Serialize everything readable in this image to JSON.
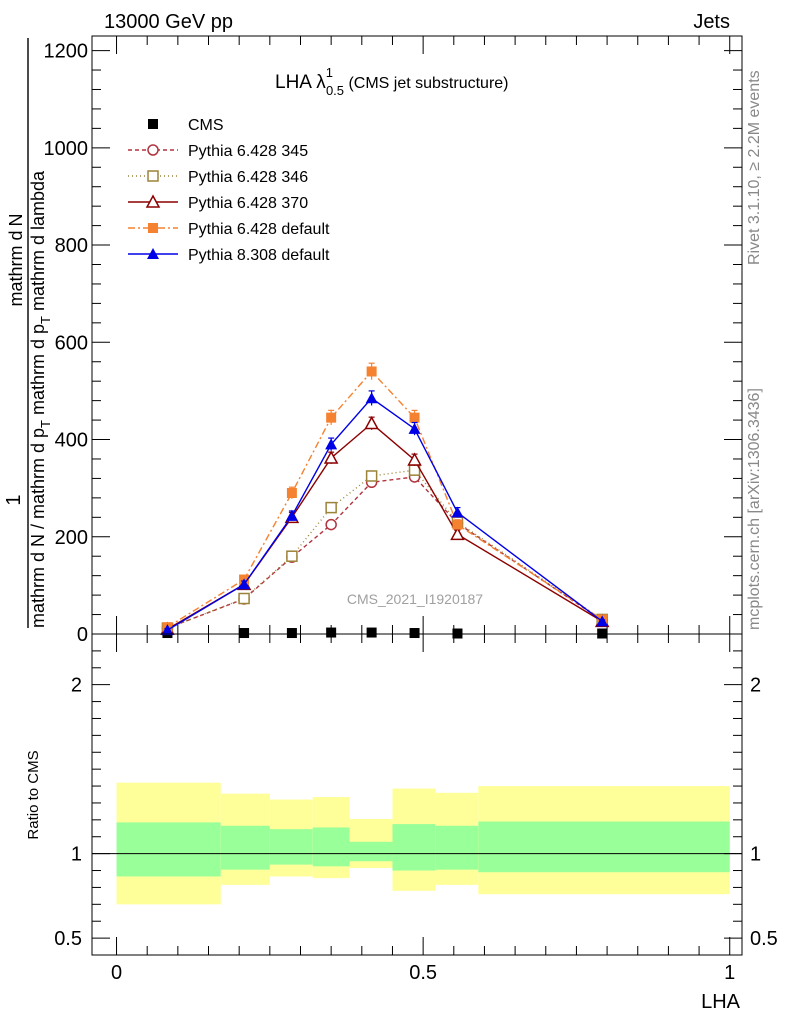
{
  "header": {
    "left": "13000 GeV pp",
    "right": "Jets"
  },
  "side_text": {
    "top": "Rivet 3.1.10, ≥ 2.2M events",
    "bottom": "mcplots.cern.ch [arXiv:1306.3436]"
  },
  "watermark": "CMS_2021_I1920187",
  "chart_data": [
    {
      "type": "line",
      "title": {
        "main": "LHA λ",
        "sup": "1",
        "sub": "0.5",
        "suffix": " (CMS jet substructure)"
      },
      "ylabel": {
        "num": "1",
        "den": "mathrm d N / mathrm d p",
        "den_sub": "T",
        "den2": " mathrm d p",
        "den2_sub": "T",
        "den3": " mathrm d lambda",
        "frac2_num": "mathrm d",
        "frac2_num2": "N"
      },
      "xlim": [
        -0.04,
        1.02
      ],
      "ylim": [
        0,
        1230
      ],
      "yticks": [
        0,
        200,
        400,
        600,
        800,
        1000,
        1200
      ],
      "yticklabels": [
        "0",
        "200",
        "400",
        "600",
        "800",
        "1000",
        "1200"
      ],
      "grid": false,
      "legend_position": "top-left",
      "series": [
        {
          "name": "CMS",
          "color": "#000000",
          "marker": "square-filled",
          "dash": "",
          "x": [
            0.083,
            0.208,
            0.286,
            0.35,
            0.416,
            0.486,
            0.556,
            0.792
          ],
          "y": [
            2,
            2,
            2,
            3,
            3,
            2,
            1,
            1
          ],
          "err": [
            0,
            0,
            0,
            0,
            0,
            0,
            0,
            0
          ]
        },
        {
          "name": "Pythia 6.428 345",
          "color": "#b2343f",
          "marker": "circle-open",
          "dash": "4,3",
          "x": [
            0.083,
            0.208,
            0.286,
            0.35,
            0.416,
            0.486,
            0.556,
            0.792
          ],
          "y": [
            12,
            72,
            158,
            225,
            312,
            323,
            228,
            28
          ],
          "err": [
            3,
            6,
            8,
            8,
            10,
            10,
            8,
            3
          ]
        },
        {
          "name": "Pythia 6.428 346",
          "color": "#9b8338",
          "marker": "square-open",
          "dash": "1,3",
          "x": [
            0.083,
            0.208,
            0.286,
            0.35,
            0.416,
            0.486,
            0.556,
            0.792
          ],
          "y": [
            12,
            73,
            160,
            260,
            325,
            337,
            230,
            30
          ],
          "err": [
            3,
            6,
            8,
            9,
            10,
            10,
            8,
            3
          ]
        },
        {
          "name": "Pythia 6.428 370",
          "color": "#8b0000",
          "marker": "triangle-open",
          "dash": "",
          "x": [
            0.083,
            0.208,
            0.286,
            0.35,
            0.416,
            0.486,
            0.556,
            0.792
          ],
          "y": [
            10,
            102,
            240,
            362,
            433,
            358,
            205,
            26
          ],
          "err": [
            3,
            7,
            10,
            12,
            13,
            12,
            9,
            3
          ]
        },
        {
          "name": "Pythia 6.428 default",
          "color": "#f58231",
          "marker": "square-filled",
          "dash": "7,3,2,3",
          "x": [
            0.083,
            0.208,
            0.286,
            0.35,
            0.416,
            0.486,
            0.556,
            0.792
          ],
          "y": [
            14,
            112,
            290,
            445,
            540,
            445,
            225,
            30
          ],
          "err": [
            3,
            8,
            12,
            15,
            17,
            15,
            10,
            3
          ]
        },
        {
          "name": "Pythia 8.308 default",
          "color": "#0000e6",
          "marker": "triangle-filled",
          "dash": "",
          "x": [
            0.083,
            0.208,
            0.286,
            0.35,
            0.416,
            0.486,
            0.556,
            0.792
          ],
          "y": [
            8,
            102,
            243,
            390,
            485,
            422,
            250,
            26
          ],
          "err": [
            3,
            7,
            10,
            13,
            15,
            13,
            10,
            3
          ]
        }
      ]
    },
    {
      "type": "area",
      "ylabel": "Ratio to CMS",
      "xlabel": "LHA",
      "xlim": [
        -0.04,
        1.02
      ],
      "xticks": [
        0,
        0.5,
        1
      ],
      "xticklabels": [
        "0",
        "0.5",
        "1"
      ],
      "ylim": [
        0.4,
        2.3
      ],
      "yticks": [
        0.5,
        1,
        2
      ],
      "yticklabels": [
        "0.5",
        "1",
        "2"
      ],
      "reference_line": 1,
      "bands": {
        "bin_edges": [
          0,
          0.17,
          0.25,
          0.32,
          0.38,
          0.45,
          0.52,
          0.59,
          1.0
        ],
        "inner_color": "#99ff99",
        "outer_color": "#ffff99",
        "inner_lo": [
          0.865,
          0.905,
          0.935,
          0.925,
          0.955,
          0.9,
          0.905,
          0.89
        ],
        "inner_hi": [
          1.185,
          1.165,
          1.145,
          1.155,
          1.07,
          1.175,
          1.165,
          1.19
        ],
        "outer_lo": [
          0.7,
          0.815,
          0.865,
          0.855,
          0.915,
          0.78,
          0.815,
          0.76
        ],
        "outer_hi": [
          1.42,
          1.355,
          1.32,
          1.335,
          1.205,
          1.385,
          1.36,
          1.4
        ]
      }
    }
  ]
}
